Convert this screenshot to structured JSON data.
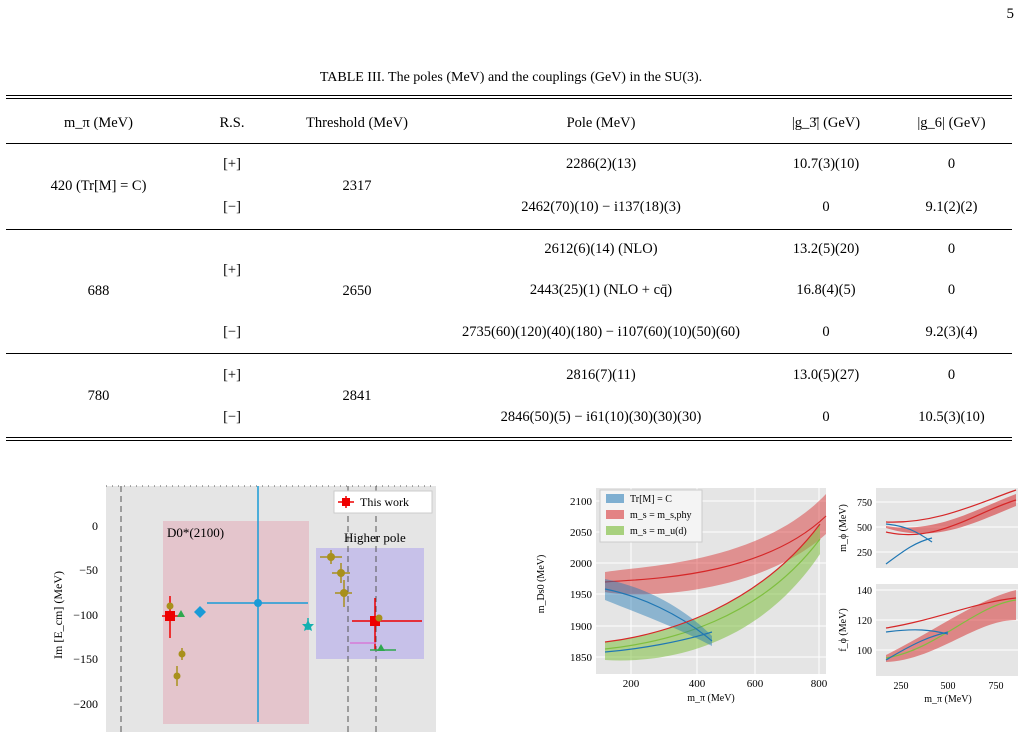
{
  "page_number": "5",
  "table": {
    "caption": "TABLE III. The poles (MeV) and the couplings (GeV) in the SU(3).",
    "headers": [
      "m_π (MeV)",
      "R.S.",
      "Threshold (MeV)",
      "Pole (MeV)",
      "|g_3̄| (GeV)",
      "|g_6| (GeV)"
    ],
    "groups": [
      {
        "mpi": "420 (Tr[M] = C)",
        "threshold": "2317",
        "rows": [
          {
            "rs": "[+]",
            "pole": "2286(2)(13)",
            "g3": "10.7(3)(10)",
            "g6": "0"
          },
          {
            "rs": "[−]",
            "pole": "2462(70)(10) − i137(18)(3)",
            "g3": "0",
            "g6": "9.1(2)(2)"
          }
        ]
      },
      {
        "mpi": "688",
        "threshold": "2650",
        "rows": [
          {
            "rs": "[+]",
            "pole": "2612(6)(14) (NLO)",
            "g3": "13.2(5)(20)",
            "g6": "0"
          },
          {
            "rs": "",
            "pole": "2443(25)(1) (NLO + cq̄)",
            "g3": "16.8(4)(5)",
            "g6": "0"
          },
          {
            "rs": "[−]",
            "pole": "2735(60)(120)(40)(180) − i107(60)(10)(50)(60)",
            "g3": "0",
            "g6": "9.2(3)(4)"
          }
        ]
      },
      {
        "mpi": "780",
        "threshold": "2841",
        "rows": [
          {
            "rs": "[+]",
            "pole": "2816(7)(11)",
            "g3": "13.0(5)(27)",
            "g6": "0"
          },
          {
            "rs": "[−]",
            "pole": "2846(50)(5) − i61(10)(30)(30)(30)",
            "g3": "0",
            "g6": "10.5(3)(10)"
          }
        ]
      }
    ]
  },
  "left_plot": {
    "ylabel": "Im [E_cm] (MeV)",
    "yticks": [
      "0",
      "−50",
      "−100",
      "−150",
      "−200"
    ],
    "legend": "This work",
    "box_labels": [
      "D0*(2100)",
      "Higher pole"
    ],
    "colors": {
      "pink_box": "#e4c5cc",
      "purple_box": "#c7c1e9",
      "this_work": "#ee0000",
      "olive": "#a8901c",
      "cyan": "#1a9bd7",
      "teal": "#14b0b0",
      "green": "#2ea84e",
      "magenta": "#d77ad7"
    }
  },
  "right_plot": {
    "ylabel": "m_Ds0 (MeV)",
    "xlabel": "m_π (MeV)",
    "yticks": [
      "2100",
      "2050",
      "2000",
      "1950",
      "1900",
      "1850"
    ],
    "xticks": [
      "200",
      "400",
      "600",
      "800"
    ],
    "legend": [
      "Tr[M] = C",
      "m_s = m_s,phy",
      "m_s = m_u(d)"
    ],
    "colors": [
      "#1f77b4",
      "#d62728",
      "#7fbf3f"
    ]
  },
  "inset_top": {
    "ylabel": "m_ϕ (MeV)",
    "yticks": [
      "750",
      "500",
      "250"
    ]
  },
  "inset_bottom": {
    "ylabel": "f_ϕ (MeV)",
    "yticks": [
      "140",
      "120",
      "100"
    ],
    "xticks": [
      "250",
      "500",
      "750"
    ],
    "xlabel": "m_π (MeV)"
  }
}
